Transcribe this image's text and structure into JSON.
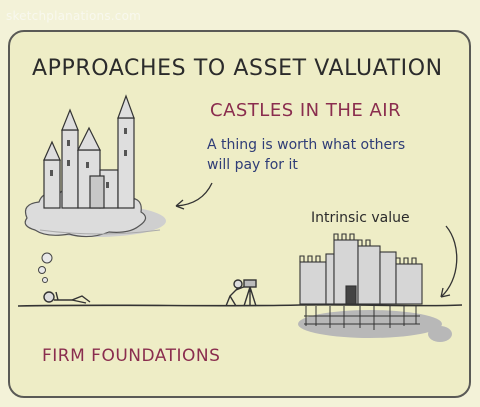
{
  "site": {
    "url": "sketchplanations.com"
  },
  "title": "APPROACHES TO ASSET VALUATION",
  "castles": {
    "label": "CASTLES IN THE AIR",
    "quote": "A thing is worth what others\nwill pay for it"
  },
  "intrinsic_value": {
    "label": "Intrinsic value"
  },
  "firm_foundations": {
    "label": "FIRM FOUNDATIONS"
  },
  "colors": {
    "background": "#f3f2d8",
    "card": "#eeedc6",
    "accent_red": "#8a2d4e",
    "accent_blue": "#2f3d77",
    "ink": "#2b2b2b"
  }
}
